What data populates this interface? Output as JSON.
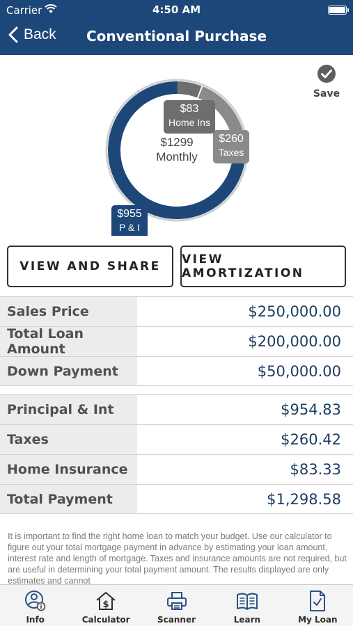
{
  "status_bar": {
    "carrier": "Carrier",
    "time": "4:50 AM"
  },
  "nav": {
    "back_label": "Back",
    "title": "Conventional Purchase"
  },
  "save": {
    "label": "Save"
  },
  "chart_data": {
    "type": "pie",
    "center_label": [
      "$1299",
      "Monthly"
    ],
    "slices": [
      {
        "label": "P & I",
        "value_label": "$955",
        "value": 955,
        "color": "#1d4778"
      },
      {
        "label": "Taxes",
        "value_label": "$260",
        "value": 260,
        "color": "#8a8a8a"
      },
      {
        "label": "Home Ins",
        "value_label": "$83",
        "value": 83,
        "color": "#6e6e6e"
      }
    ]
  },
  "buttons": {
    "view_share": "VIEW AND SHARE",
    "view_amortization": "VIEW AMORTIZATION"
  },
  "loan_rows": [
    {
      "label": "Sales Price",
      "value": "$250,000.00"
    },
    {
      "label": "Total Loan Amount",
      "value": "$200,000.00"
    },
    {
      "label": "Down Payment",
      "value": "$50,000.00"
    }
  ],
  "payment_rows": [
    {
      "label": "Principal & Int",
      "value": "$954.83"
    },
    {
      "label": "Taxes",
      "value": "$260.42"
    },
    {
      "label": "Home Insurance",
      "value": "$83.33"
    },
    {
      "label": "Total Payment",
      "value": "$1,298.58"
    }
  ],
  "disclaimer": "It is important to find the right home loan to match your budget. Use our calculator to figure out your total mortgage payment in advance by estimating your loan amount, interest rate and length of mortgage. Taxes and insurance amounts are not required, but are useful in determining your total payment amount.  The results displayed are only estimates and cannot",
  "tabs": [
    {
      "label": "Info",
      "icon": "info-person-icon"
    },
    {
      "label": "Calculator",
      "icon": "house-dollar-icon"
    },
    {
      "label": "Scanner",
      "icon": "printer-icon"
    },
    {
      "label": "Learn",
      "icon": "book-icon"
    },
    {
      "label": "My Loan",
      "icon": "checklist-icon"
    }
  ]
}
